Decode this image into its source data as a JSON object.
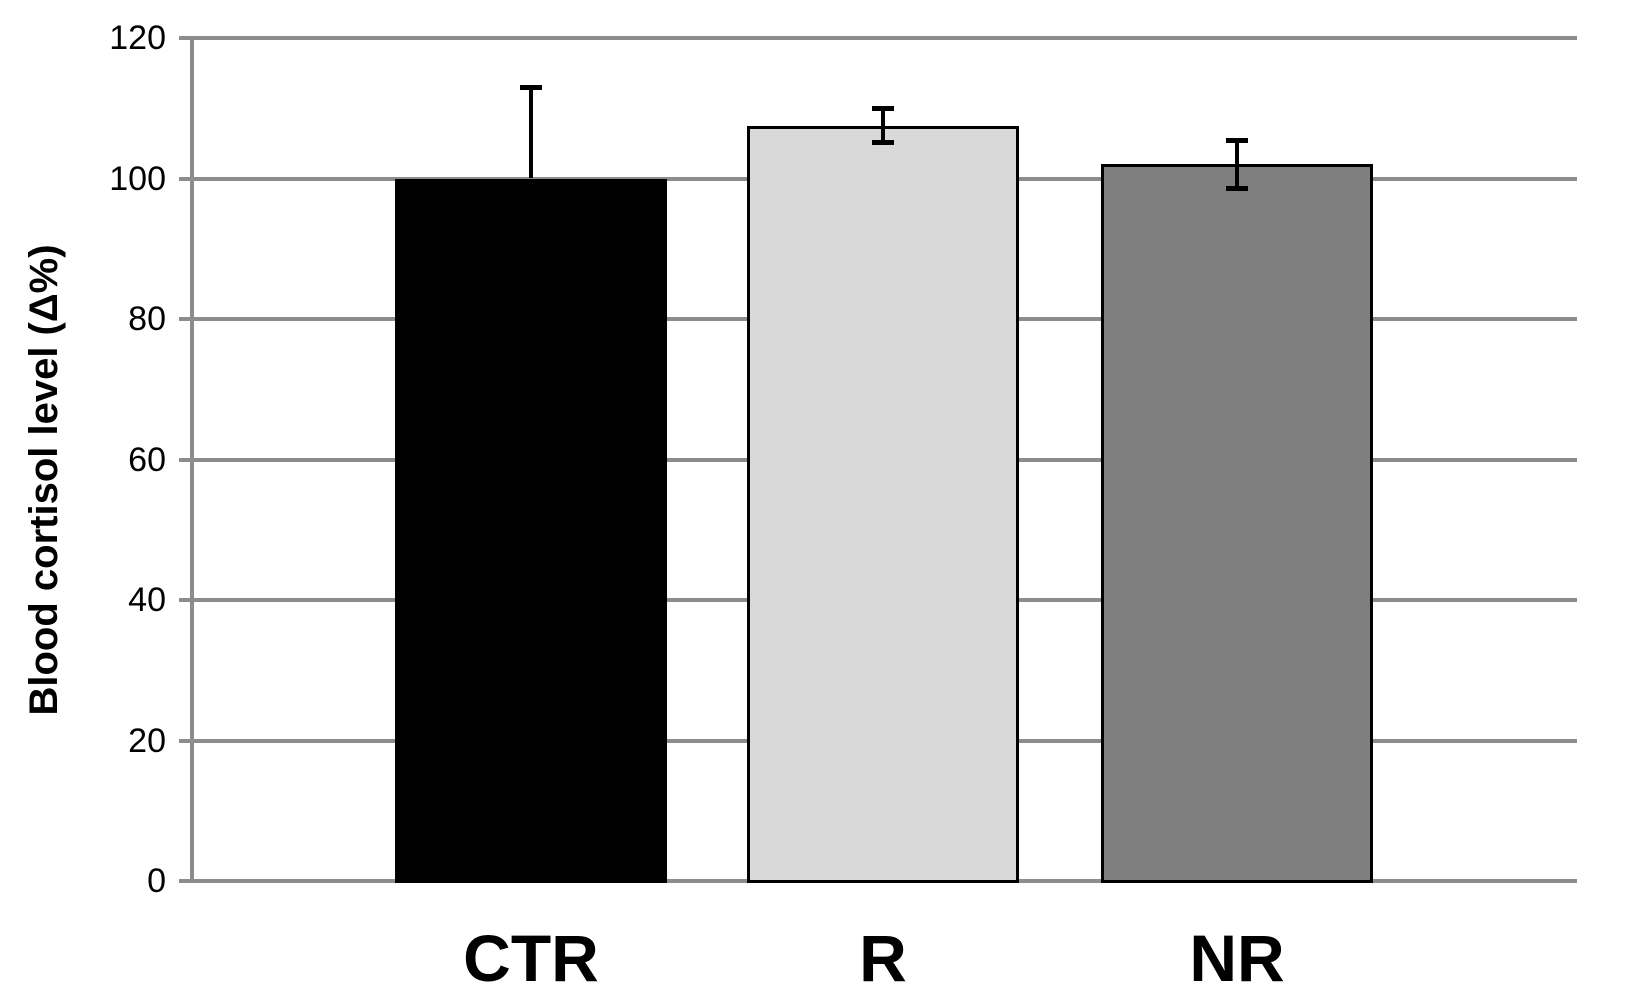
{
  "chart_data": {
    "type": "bar",
    "title": "",
    "xlabel": "",
    "ylabel": "Blood cortisol level (Δ%)",
    "categories": [
      "CTR",
      "R",
      "NR"
    ],
    "values": [
      100,
      107.5,
      102
    ],
    "bar_fill_colors": [
      "#000000",
      "#d9d9d9",
      "#7f7f7f"
    ],
    "bar_border_color": "#000000",
    "error_bars": [
      {
        "top": 113,
        "bottom": null
      },
      {
        "top": 110,
        "bottom": 105
      },
      {
        "top": 105.5,
        "bottom": 98.5
      }
    ],
    "ylim": [
      0,
      120
    ],
    "yticks": [
      0,
      20,
      40,
      60,
      80,
      100,
      120
    ],
    "grid": "horizontal",
    "legend": "none",
    "axis_color": "#8c8c8c",
    "text_color": "#000000"
  }
}
